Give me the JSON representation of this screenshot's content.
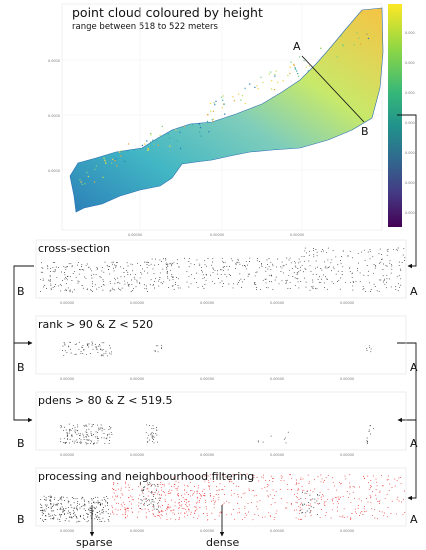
{
  "top_panel": {
    "title": "point cloud coloured by height",
    "subtitle": "range between 518 to 522 meters",
    "section_start": "A",
    "section_end": "B",
    "colorbar_colors": [
      "#fde725",
      "#b5de2b",
      "#6ece58",
      "#35b779",
      "#1f9e89",
      "#26828e",
      "#31688e",
      "#3e4989",
      "#482878",
      "#440154"
    ]
  },
  "panels": [
    {
      "title": "cross-section",
      "left_label": "B",
      "right_label": "A",
      "color": "#222222"
    },
    {
      "title": "rank > 90 & Z < 520",
      "left_label": "B",
      "right_label": "A",
      "color": "#222222"
    },
    {
      "title": "pdens > 80 & Z < 519.5",
      "left_label": "B",
      "right_label": "A",
      "color": "#222222"
    },
    {
      "title": "processing and neighbourhood filtering",
      "left_label": "B",
      "right_label": "A",
      "color": "#e41a1c"
    }
  ],
  "annotations": {
    "sparse": "sparse",
    "dense": "dense"
  }
}
